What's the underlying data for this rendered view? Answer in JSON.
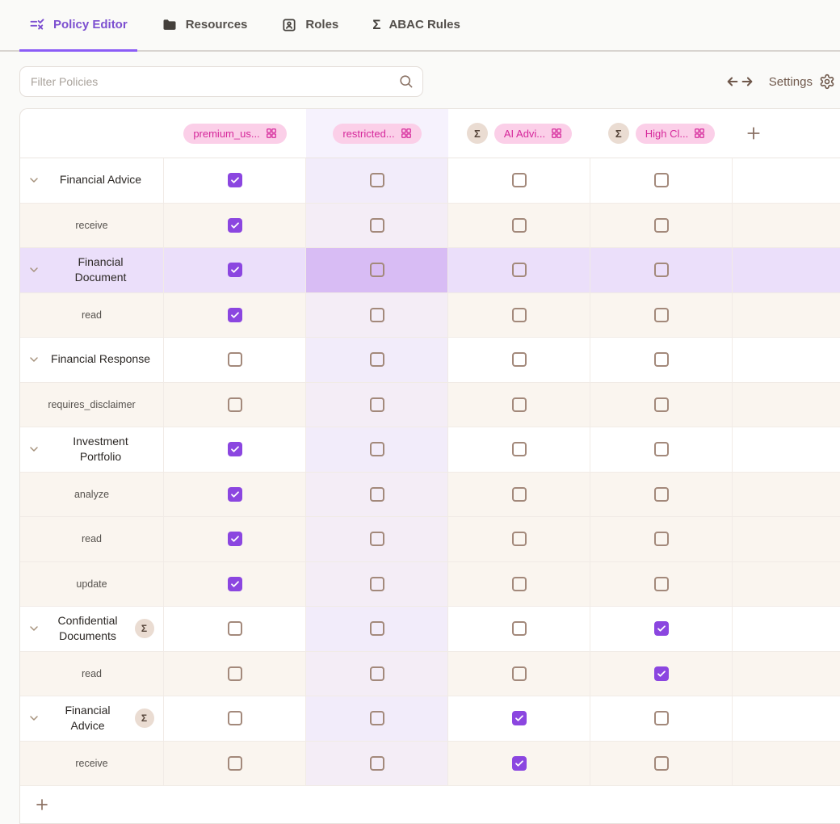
{
  "tabs": [
    {
      "label": "Policy Editor",
      "icon": "policy-rules-icon",
      "active": true
    },
    {
      "label": "Resources",
      "icon": "folder-icon",
      "active": false
    },
    {
      "label": "Roles",
      "icon": "contact-card-icon",
      "active": false
    },
    {
      "label": "ABAC Rules",
      "icon": "sigma-icon",
      "active": false
    }
  ],
  "toolbar": {
    "filter_placeholder": "Filter Policies",
    "settings_label": "Settings"
  },
  "matrix": {
    "columns": [
      {
        "label": "premium_us...",
        "sigma": false,
        "tinted": false
      },
      {
        "label": "restricted...",
        "sigma": false,
        "tinted": true
      },
      {
        "label": "AI Advi...",
        "sigma": true,
        "tinted": false
      },
      {
        "label": "High Cl...",
        "sigma": true,
        "tinted": false
      }
    ],
    "sigma_symbol": "Σ",
    "rows": [
      {
        "label": "Financial Advice",
        "type": "parent",
        "sigma": false,
        "wrap": false,
        "highlighted": false,
        "selected_col": -1,
        "checks": [
          true,
          false,
          false,
          false
        ]
      },
      {
        "label": "receive",
        "type": "child",
        "sigma": false,
        "wrap": false,
        "highlighted": false,
        "selected_col": -1,
        "checks": [
          true,
          false,
          false,
          false
        ]
      },
      {
        "label": "Financial Document",
        "type": "parent",
        "sigma": false,
        "wrap": true,
        "highlighted": true,
        "selected_col": 1,
        "checks": [
          true,
          false,
          false,
          false
        ]
      },
      {
        "label": "read",
        "type": "child",
        "sigma": false,
        "wrap": false,
        "highlighted": false,
        "selected_col": -1,
        "checks": [
          true,
          false,
          false,
          false
        ]
      },
      {
        "label": "Financial Response",
        "type": "parent",
        "sigma": false,
        "wrap": false,
        "highlighted": false,
        "selected_col": -1,
        "checks": [
          false,
          false,
          false,
          false
        ]
      },
      {
        "label": "requires_disclaimer",
        "type": "child",
        "sigma": false,
        "wrap": false,
        "highlighted": false,
        "selected_col": -1,
        "checks": [
          false,
          false,
          false,
          false
        ]
      },
      {
        "label": "Investment Portfolio",
        "type": "parent",
        "sigma": false,
        "wrap": true,
        "highlighted": false,
        "selected_col": -1,
        "checks": [
          true,
          false,
          false,
          false
        ]
      },
      {
        "label": "analyze",
        "type": "child",
        "sigma": false,
        "wrap": false,
        "highlighted": false,
        "selected_col": -1,
        "checks": [
          true,
          false,
          false,
          false
        ]
      },
      {
        "label": "read",
        "type": "child",
        "sigma": false,
        "wrap": false,
        "highlighted": false,
        "selected_col": -1,
        "checks": [
          true,
          false,
          false,
          false
        ]
      },
      {
        "label": "update",
        "type": "child",
        "sigma": false,
        "wrap": false,
        "highlighted": false,
        "selected_col": -1,
        "checks": [
          true,
          false,
          false,
          false
        ]
      },
      {
        "label": "Confidential Documents",
        "type": "parent",
        "sigma": true,
        "wrap": true,
        "highlighted": false,
        "selected_col": -1,
        "checks": [
          false,
          false,
          false,
          true
        ]
      },
      {
        "label": "read",
        "type": "child",
        "sigma": false,
        "wrap": false,
        "highlighted": false,
        "selected_col": -1,
        "checks": [
          false,
          false,
          false,
          true
        ]
      },
      {
        "label": "Financial Advice",
        "type": "parent",
        "sigma": true,
        "wrap": true,
        "highlighted": false,
        "selected_col": -1,
        "checks": [
          false,
          false,
          true,
          false
        ]
      },
      {
        "label": "receive",
        "type": "child",
        "sigma": false,
        "wrap": false,
        "highlighted": false,
        "selected_col": -1,
        "checks": [
          false,
          false,
          true,
          false
        ]
      }
    ]
  },
  "colors": {
    "accent": "#8b5cf6",
    "active_tab": "#7c4fd0",
    "check_bg": "#8b46e0",
    "pill_bg": "#fbcfe8",
    "pill_text": "#d6289b",
    "sigma_badge_bg": "#eadcd2",
    "column_tint_solid": "#f2ecfa",
    "row_highlight": "#ebdffa",
    "cell_selected": "#d8bcf4",
    "child_row_bg": "#faf5ef"
  }
}
